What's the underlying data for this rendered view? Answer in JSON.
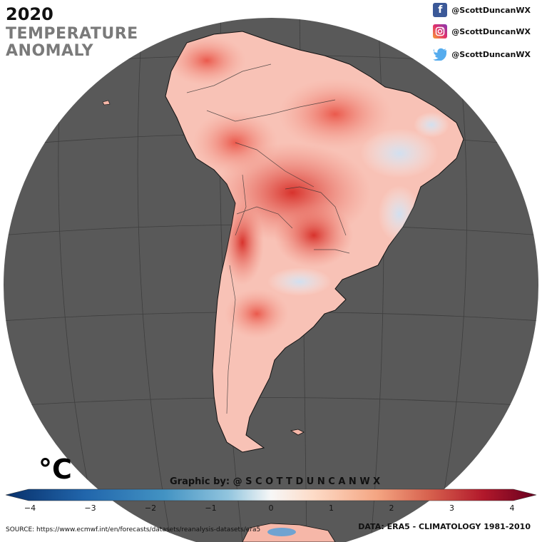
{
  "header": {
    "year": "2020",
    "title_line1": "TEMPERATURE",
    "title_line2": "ANOMALY"
  },
  "social": [
    {
      "platform": "facebook",
      "icon": "facebook-icon",
      "handle": "@ScottDuncanWX"
    },
    {
      "platform": "instagram",
      "icon": "instagram-icon",
      "handle": "@ScottDuncanWX"
    },
    {
      "platform": "twitter",
      "icon": "twitter-icon",
      "handle": "@ScottDuncanWX"
    }
  ],
  "legend": {
    "unit": "°C",
    "credit": "Graphic by: @ S C O T T D U N C A N W X",
    "ticks": [
      "−4",
      "−3",
      "−2",
      "−1",
      "0",
      "1",
      "2",
      "3",
      "4"
    ],
    "range": [
      -4,
      4
    ],
    "colors": {
      "cold": "#08306b",
      "neutral": "#ffffff",
      "warm": "#67000d"
    }
  },
  "footer": {
    "source": "SOURCE: https://www.ecmwf.int/en/forecasts/datasets/reanalysis-datasets/era5",
    "data": "DATA: ERA5 - CLIMATOLOGY 1981-2010"
  },
  "map": {
    "ocean_color": "#595959",
    "region": "South America"
  }
}
